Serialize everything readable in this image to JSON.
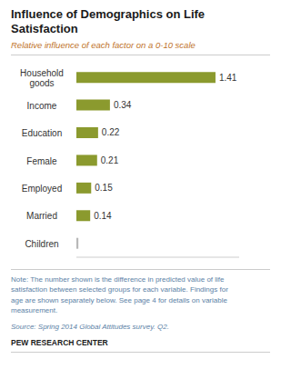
{
  "chart_data": {
    "type": "bar",
    "orientation": "horizontal",
    "title": "Influence of Demographics on Life\nSatisfaction",
    "subtitle": "Relative influence of each factor on a 0-10 scale",
    "categories": [
      "Household\ngoods",
      "Income",
      "Education",
      "Female",
      "Employed",
      "Married",
      "Children"
    ],
    "values": [
      1.41,
      0.34,
      0.22,
      0.21,
      0.15,
      0.14,
      0.02
    ],
    "value_labels": [
      "1.41",
      "0.34",
      "0.22",
      "0.21",
      "0.15",
      "0.14",
      null
    ],
    "data_labels": true,
    "colors": [
      "#8b9a2e",
      "#8b9a2e",
      "#8b9a2e",
      "#8b9a2e",
      "#8b9a2e",
      "#8b9a2e",
      "#b8b8b8"
    ],
    "xlim": [
      0,
      1.65
    ],
    "tick_labels": "y",
    "grid": false,
    "annotations": [
      "Note: The number shown is the difference in predicted value of life\nsatisfaction between selected groups for each variable. Findings for\nage are shown separately below. See page 4 for details on variable\nmeasurement.",
      "Source: Spring 2014 Global Attitudes survey. Q2.",
      "PEW RESEARCH CENTER"
    ]
  }
}
